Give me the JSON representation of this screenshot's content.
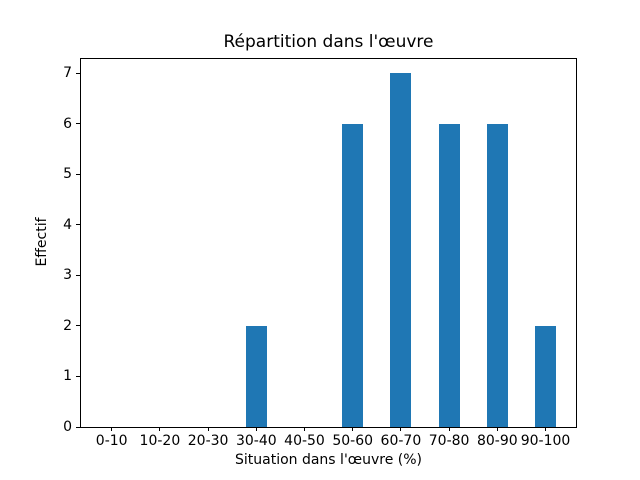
{
  "chart_data": {
    "type": "bar",
    "title": "Répartition dans l'œuvre",
    "xlabel": "Situation dans l'œuvre (%)",
    "ylabel": "Effectif",
    "categories": [
      "0-10",
      "10-20",
      "20-30",
      "30-40",
      "40-50",
      "50-60",
      "60-70",
      "70-80",
      "80-90",
      "90-100"
    ],
    "values": [
      0,
      0,
      0,
      2,
      0,
      6,
      7,
      6,
      6,
      2
    ],
    "yticks": [
      0,
      1,
      2,
      3,
      4,
      5,
      6,
      7
    ],
    "ylim": [
      0,
      7.3
    ],
    "bar_color": "#1f77b4",
    "axis_color": "#000000",
    "grid": false,
    "legend_position": "none"
  }
}
